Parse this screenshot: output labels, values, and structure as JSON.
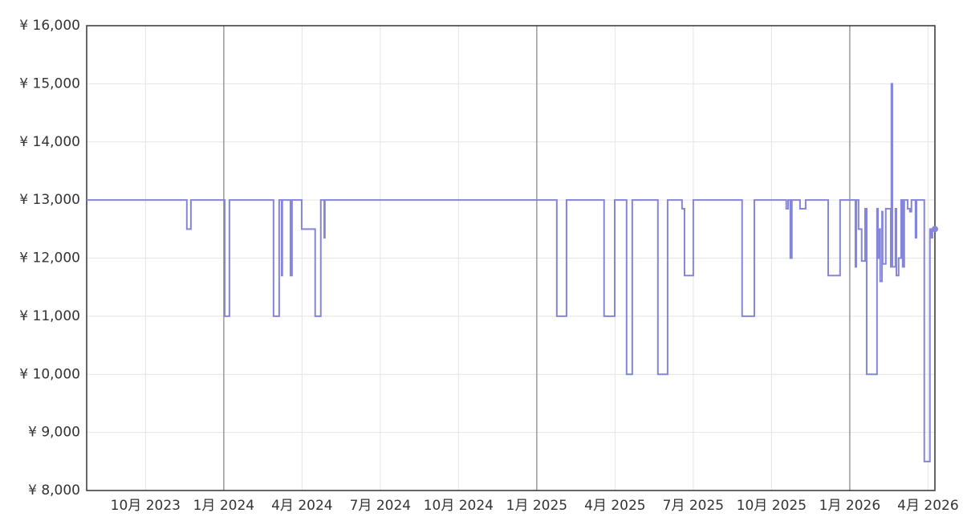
{
  "chart_data": {
    "type": "step",
    "color": "#8585d9",
    "grid": true,
    "xlim": [
      2023.562,
      2026.272
    ],
    "ylim": [
      8000,
      16000
    ],
    "xticks": [
      {
        "value": 2023.75,
        "label": "10月 2023"
      },
      {
        "value": 2024,
        "label": "1月 2024"
      },
      {
        "value": 2024.25,
        "label": "4月 2024"
      },
      {
        "value": 2024.5,
        "label": "7月 2024"
      },
      {
        "value": 2024.75,
        "label": "10月 2024"
      },
      {
        "value": 2025,
        "label": "1月 2025"
      },
      {
        "value": 2025.25,
        "label": "4月 2025"
      },
      {
        "value": 2025.5,
        "label": "7月 2025"
      },
      {
        "value": 2025.75,
        "label": "10月 2025"
      },
      {
        "value": 2026,
        "label": "1月 2026"
      },
      {
        "value": 2026.25,
        "label": "4月 2026"
      }
    ],
    "yticks": [
      {
        "value": 8000,
        "label": "¥ 8,000"
      },
      {
        "value": 9000,
        "label": "¥ 9,000"
      },
      {
        "value": 10000,
        "label": "¥ 10,000"
      },
      {
        "value": 11000,
        "label": "¥ 11,000"
      },
      {
        "value": 12000,
        "label": "¥ 12,000"
      },
      {
        "value": 13000,
        "label": "¥ 13,000"
      },
      {
        "value": 14000,
        "label": "¥ 14,000"
      },
      {
        "value": 15000,
        "label": "¥ 15,000"
      },
      {
        "value": 16000,
        "label": "¥ 16,000"
      }
    ],
    "x": [
      2023.562,
      2023.882,
      2023.895,
      2024.003,
      2024.018,
      2024.159,
      2024.177,
      2024.185,
      2024.187,
      2024.213,
      2024.218,
      2024.249,
      2024.292,
      2024.31,
      2024.321,
      2024.323,
      2025.064,
      2025.095,
      2025.215,
      2025.249,
      2025.287,
      2025.305,
      2025.387,
      2025.418,
      2025.464,
      2025.472,
      2025.5,
      2025.656,
      2025.695,
      2025.797,
      2025.803,
      2025.81,
      2025.815,
      2025.841,
      2025.859,
      2025.931,
      2025.969,
      2026.018,
      2026.021,
      2026.028,
      2026.038,
      2026.049,
      2026.054,
      2026.087,
      2026.09,
      2026.095,
      2026.097,
      2026.103,
      2026.105,
      2026.115,
      2026.131,
      2026.133,
      2026.136,
      2026.146,
      2026.149,
      2026.156,
      2026.164,
      2026.169,
      2026.174,
      2026.185,
      2026.192,
      2026.197,
      2026.21,
      2026.213,
      2026.238,
      2026.256,
      2026.259,
      2026.264,
      2026.272
    ],
    "values": [
      13000,
      12500,
      13000,
      11000,
      13000,
      11000,
      13000,
      11700,
      13000,
      11700,
      13000,
      12500,
      11000,
      13000,
      12350,
      13000,
      11000,
      13000,
      11000,
      13000,
      10000,
      13000,
      10000,
      13000,
      12850,
      11700,
      13000,
      11000,
      13000,
      12850,
      13000,
      12000,
      13000,
      12850,
      13000,
      11700,
      13000,
      11850,
      13000,
      12500,
      11950,
      12850,
      10000,
      12850,
      12000,
      12500,
      11600,
      12800,
      11900,
      12850,
      11850,
      15000,
      11850,
      12850,
      11700,
      12000,
      13000,
      11850,
      13000,
      12850,
      12800,
      13000,
      12350,
      13000,
      8500,
      12500,
      12350,
      12500,
      12500
    ]
  }
}
